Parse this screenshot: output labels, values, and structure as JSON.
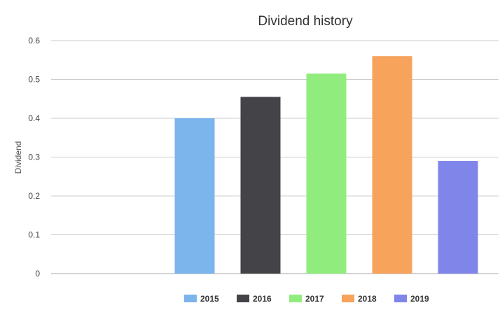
{
  "chart_data": {
    "type": "bar",
    "title": "Dividend history",
    "xlabel": "",
    "ylabel": "Dividend",
    "ylim": [
      0,
      0.6
    ],
    "yticks": [
      "0",
      "0.1",
      "0.2",
      "0.3",
      "0.4",
      "0.5",
      "0.6"
    ],
    "grid": true,
    "legend_position": "bottom",
    "series": [
      {
        "name": "2015",
        "value": 0.4,
        "color": "#7cb4ec"
      },
      {
        "name": "2016",
        "value": 0.455,
        "color": "#434348"
      },
      {
        "name": "2017",
        "value": 0.515,
        "color": "#90ed7d"
      },
      {
        "name": "2018",
        "value": 0.56,
        "color": "#f7a35c"
      },
      {
        "name": "2019",
        "value": 0.29,
        "color": "#8085e9"
      }
    ]
  }
}
